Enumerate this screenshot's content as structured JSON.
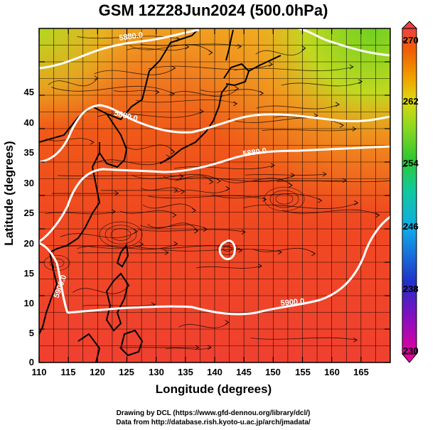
{
  "title": "GSM 12Z28Jun2024 (500.0hPa)",
  "x_axis": {
    "label": "Longitude (degrees)",
    "range": [
      110,
      170
    ],
    "ticks": [
      "110",
      "115",
      "120",
      "125",
      "130",
      "135",
      "140",
      "145",
      "150",
      "155",
      "160",
      "165"
    ]
  },
  "y_axis": {
    "label": "Latitude  (degrees)",
    "range": [
      0,
      50
    ],
    "ticks": [
      "0",
      "5",
      "10",
      "15",
      "20",
      "25",
      "30",
      "35",
      "40",
      "45"
    ]
  },
  "colorbar": {
    "ticks": [
      "270",
      "262",
      "254",
      "246",
      "238",
      "230"
    ],
    "range": [
      230,
      270
    ],
    "colors": [
      "#e6007e",
      "#2030c8",
      "#10b0e8",
      "#20c878",
      "#50d020",
      "#d8d810",
      "#f0a000",
      "#f05000",
      "#f04040"
    ]
  },
  "contours": [
    {
      "label": "5880.0"
    },
    {
      "label": "5880.0"
    },
    {
      "label": "5880.0"
    },
    {
      "label": "5900.0"
    },
    {
      "label": "5900.0"
    }
  ],
  "credits": {
    "line1": "Drawing by DCL (https://www.gfd-dennou.org/library/dcl/)",
    "line2": "Data from http://database.rish.kyoto-u.ac.jp/arch/jmadata/"
  }
}
